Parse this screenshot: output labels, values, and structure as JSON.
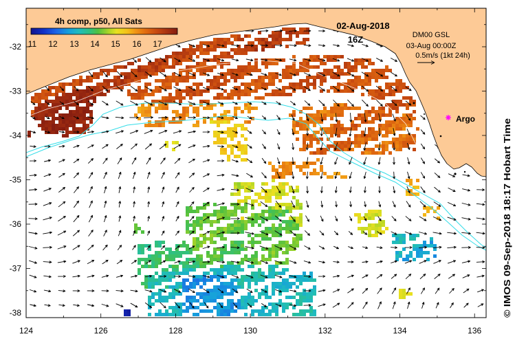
{
  "map": {
    "title": "4h comp, p50, All Sats",
    "date": "02-Aug-2018",
    "time": "16Z",
    "currents": {
      "model": "DM00 GSL",
      "valid_time": "03-Aug 00:00Z",
      "scale_label": "0.5m/s (1kt 24h)"
    },
    "argo": {
      "label": "Argo",
      "color": "#ff00ff"
    },
    "colorbar": {
      "tick_labels": [
        "11",
        "12",
        "13",
        "14",
        "15",
        "16",
        "17"
      ],
      "stops": [
        {
          "t": 11.0,
          "color": "#14148c"
        },
        {
          "t": 11.6,
          "color": "#1030c8"
        },
        {
          "t": 12.2,
          "color": "#1c64e6"
        },
        {
          "t": 12.8,
          "color": "#16a0dc"
        },
        {
          "t": 13.3,
          "color": "#20bcbc"
        },
        {
          "t": 13.8,
          "color": "#30c080"
        },
        {
          "t": 14.2,
          "color": "#50c040"
        },
        {
          "t": 14.7,
          "color": "#a8d428"
        },
        {
          "t": 15.1,
          "color": "#e8e020"
        },
        {
          "t": 15.6,
          "color": "#f4c018"
        },
        {
          "t": 16.0,
          "color": "#f09414"
        },
        {
          "t": 16.5,
          "color": "#e06a10"
        },
        {
          "t": 17.0,
          "color": "#c84a10"
        },
        {
          "t": 17.5,
          "color": "#a83210"
        },
        {
          "t": 18.0,
          "color": "#841c10"
        }
      ]
    },
    "axes": {
      "lat_labels": [
        "-32",
        "-33",
        "-34",
        "-35",
        "-36",
        "-37",
        "-38"
      ],
      "lon_labels": [
        "124",
        "126",
        "128",
        "130",
        "132",
        "134",
        "136"
      ]
    },
    "credit": "© IMOS 09-Sep-2018 18:17 Hobart Time",
    "colors": {
      "land": "#fdca96",
      "ocean": "#ffffff",
      "coastline": "#000000",
      "isobath": "#33dde8",
      "contour_white": "#ffffff",
      "vector": "#000000"
    }
  }
}
